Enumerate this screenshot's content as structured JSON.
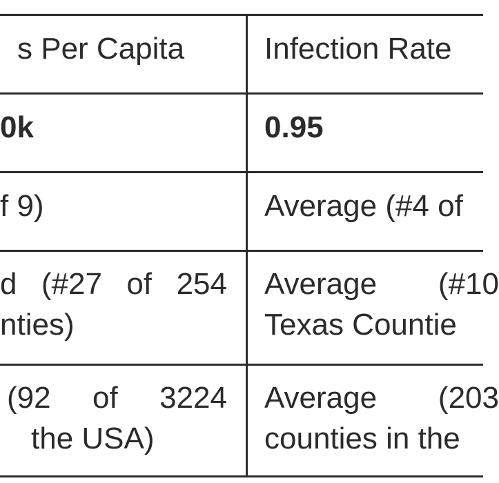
{
  "table": {
    "header": {
      "left": "s Per Capita",
      "right": "Infection Rate"
    },
    "rows": [
      {
        "left_line1": "0k",
        "left_line2": "",
        "right_line1": "0.95",
        "right_line2": ""
      },
      {
        "left_line1": "f 9)",
        "left_line2": "",
        "right_line1": "Average (#4 of",
        "right_line2": ""
      },
      {
        "left_line1": "d (#27 of 254",
        "left_line2": "nties)",
        "right_line1": "Average (#10",
        "right_line2": "Texas Countie"
      },
      {
        "left_line1": "(92 of 3224",
        "left_line2": "the USA)",
        "right_line1": "Average (203",
        "right_line2": "counties in the"
      }
    ]
  }
}
